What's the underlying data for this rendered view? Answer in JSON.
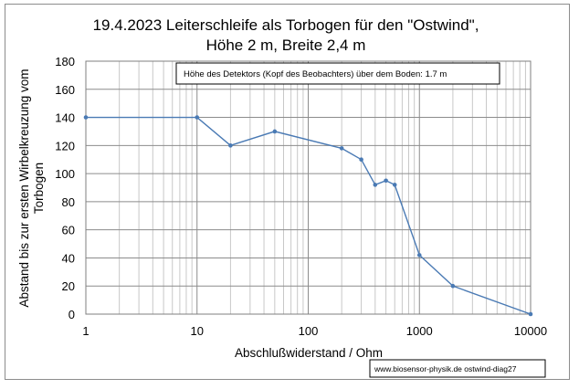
{
  "chart_data": {
    "type": "line",
    "title": [
      "19.4.2023 Leiterschleife als Torbogen für den \"Ostwind\",",
      "Höhe 2 m, Breite 2,4 m"
    ],
    "xlabel": "Abschlußwiderstand / Ohm",
    "ylabel": [
      "Abstand bis zur ersten Wirbelkreuzung vom",
      "Torbogen"
    ],
    "xscale": "log",
    "xlim": [
      1,
      10000
    ],
    "ylim": [
      0,
      180
    ],
    "xticks": [
      1,
      10,
      100,
      1000,
      10000
    ],
    "xtick_labels": [
      "1",
      "10",
      "100",
      "1000",
      "10000"
    ],
    "yticks": [
      0,
      20,
      40,
      60,
      80,
      100,
      120,
      140,
      160,
      180
    ],
    "ytick_labels": [
      "0",
      "20",
      "40",
      "60",
      "80",
      "100",
      "120",
      "140",
      "160",
      "180"
    ],
    "grid": true,
    "series": [
      {
        "name": "Abstand",
        "color": "#4a7ab4",
        "x": [
          1,
          10,
          20,
          50,
          200,
          300,
          400,
          500,
          600,
          1000,
          2000,
          10000
        ],
        "y": [
          140,
          140,
          120,
          130,
          118,
          110,
          92,
          95,
          92,
          42,
          20,
          0
        ]
      }
    ],
    "annotation": "Höhe des Detektors (Kopf des Beobachters) über dem Boden: 1.7 m",
    "source": "www.biosensor-physik.de  ostwind-diag27"
  }
}
